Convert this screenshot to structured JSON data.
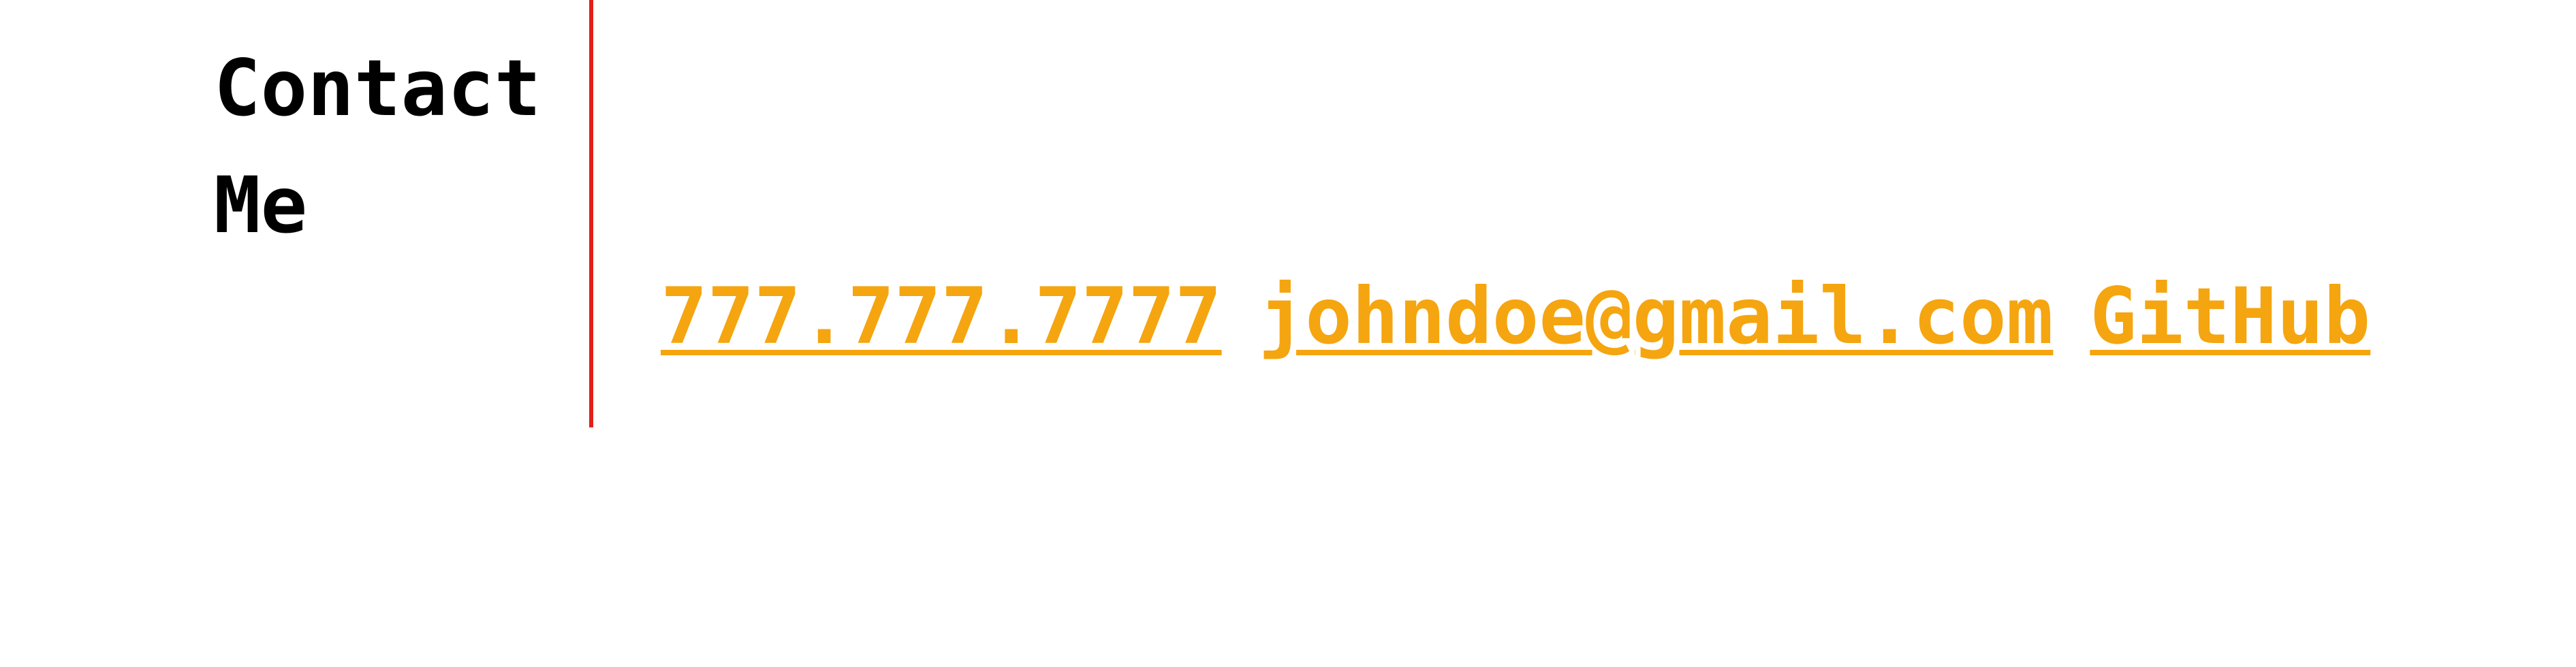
{
  "contact": {
    "heading": "Contact Me",
    "phone": "777.777.7777",
    "email": "johndoe@gmail.com",
    "github": "GitHub"
  },
  "colors": {
    "heading": "#000000",
    "divider": "#e32018",
    "link": "#f5a50f",
    "background": "#ffffff"
  }
}
